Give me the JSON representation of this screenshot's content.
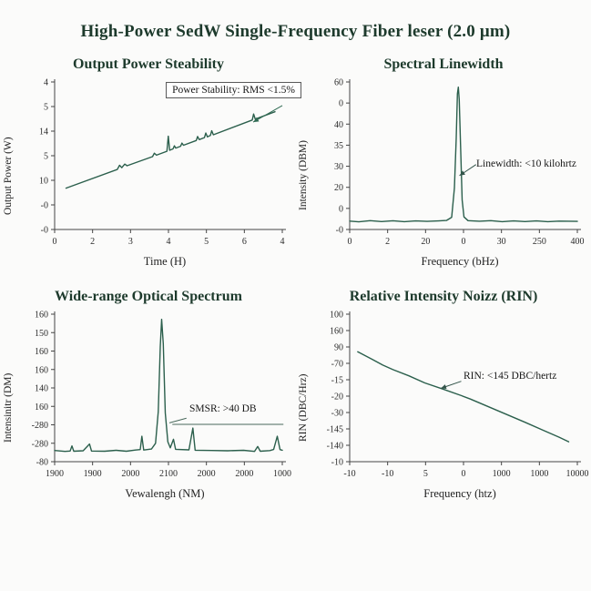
{
  "page": {
    "title": "High-Power SedW Single-Frequency Fiber leser (2.0 μm)"
  },
  "colors": {
    "background": "#fbfbfa",
    "title_text": "#1d3a2c",
    "line": "#2b5f4c",
    "axis": "#454545",
    "tick_text": "#2b2b2b",
    "annotation_text": "#161616"
  },
  "chart_data": [
    {
      "type": "line",
      "title": "Output Power Steability",
      "xlabel": "Time (H)",
      "ylabel": "Output Power (W)",
      "xticks": [
        "0",
        "2",
        "3",
        "4",
        "5",
        "6",
        "4"
      ],
      "yticks_top_to_bottom": [
        "4",
        "5",
        "14",
        "5",
        "10",
        "-0",
        "-0"
      ],
      "grid": false,
      "legend": null,
      "coords": "points_norm are fractions of plot area, origin bottom-left",
      "series": [
        {
          "name": "output-power-trace",
          "points_norm": [
            [
              0.05,
              0.28
            ],
            [
              0.275,
              0.407
            ],
            [
              0.285,
              0.435
            ],
            [
              0.295,
              0.419
            ],
            [
              0.308,
              0.443
            ],
            [
              0.318,
              0.432
            ],
            [
              0.43,
              0.494
            ],
            [
              0.438,
              0.517
            ],
            [
              0.447,
              0.504
            ],
            [
              0.493,
              0.53
            ],
            [
              0.499,
              0.632
            ],
            [
              0.505,
              0.537
            ],
            [
              0.52,
              0.546
            ],
            [
              0.526,
              0.567
            ],
            [
              0.532,
              0.552
            ],
            [
              0.553,
              0.564
            ],
            [
              0.559,
              0.586
            ],
            [
              0.566,
              0.571
            ],
            [
              0.622,
              0.603
            ],
            [
              0.628,
              0.63
            ],
            [
              0.635,
              0.609
            ],
            [
              0.658,
              0.623
            ],
            [
              0.664,
              0.654
            ],
            [
              0.671,
              0.628
            ],
            [
              0.684,
              0.637
            ],
            [
              0.69,
              0.669
            ],
            [
              0.697,
              0.642
            ],
            [
              0.868,
              0.742
            ],
            [
              0.874,
              0.783
            ],
            [
              0.881,
              0.748
            ],
            [
              0.968,
              0.798
            ]
          ]
        }
      ],
      "annotation": {
        "text": "Power Stability: RMS <1.5%",
        "boxed": true,
        "line_color": "#2f6a52",
        "arrowhead": true,
        "segments": [
          [
            1.0,
            0.84,
            0.872,
            0.728
          ]
        ]
      }
    },
    {
      "type": "line",
      "title": "Spectral Linewidth",
      "xlabel": "Frequency (bHz)",
      "ylabel": "Intensity (DBM)",
      "xticks": [
        "0",
        "2",
        "20",
        "0",
        "30",
        "250",
        "400"
      ],
      "yticks_top_to_bottom": [
        "60",
        "0",
        "40",
        "35",
        "30",
        "20",
        "0",
        "-0"
      ],
      "grid": false,
      "legend": null,
      "coords": "points_norm are fractions of plot area, origin bottom-left",
      "series": [
        {
          "name": "linewidth-peak",
          "points_norm": [
            [
              0.0,
              0.057
            ],
            [
              0.04,
              0.052
            ],
            [
              0.09,
              0.06
            ],
            [
              0.14,
              0.054
            ],
            [
              0.19,
              0.059
            ],
            [
              0.24,
              0.053
            ],
            [
              0.29,
              0.058
            ],
            [
              0.34,
              0.055
            ],
            [
              0.39,
              0.058
            ],
            [
              0.425,
              0.061
            ],
            [
              0.448,
              0.083
            ],
            [
              0.46,
              0.28
            ],
            [
              0.468,
              0.62
            ],
            [
              0.473,
              0.92
            ],
            [
              0.477,
              0.965
            ],
            [
              0.481,
              0.88
            ],
            [
              0.488,
              0.52
            ],
            [
              0.494,
              0.2
            ],
            [
              0.502,
              0.085
            ],
            [
              0.52,
              0.06
            ],
            [
              0.57,
              0.056
            ],
            [
              0.62,
              0.06
            ],
            [
              0.67,
              0.053
            ],
            [
              0.72,
              0.058
            ],
            [
              0.77,
              0.054
            ],
            [
              0.82,
              0.058
            ],
            [
              0.87,
              0.053
            ],
            [
              0.92,
              0.057
            ],
            [
              1.0,
              0.055
            ]
          ]
        }
      ],
      "annotation": {
        "text": "Linewidth: <10 kilohrtz",
        "boxed": false,
        "line_color": "#33544a",
        "arrowhead": true,
        "segments": [
          [
            0.555,
            0.44,
            0.482,
            0.365
          ]
        ]
      }
    },
    {
      "type": "line",
      "title": "Wide-range Optical Spectrum",
      "xlabel": "Vewalengh (NM)",
      "ylabel": "Intensinitr (DM)",
      "xticks": [
        "1900",
        "1900",
        "2000",
        "2100",
        "2000",
        "2000",
        "1000"
      ],
      "yticks_top_to_bottom": [
        "160",
        "150",
        "160",
        "160",
        "140",
        "160",
        "-280",
        "-280",
        "-80"
      ],
      "grid": false,
      "legend": null,
      "coords": "points_norm are fractions of plot area, origin bottom-left",
      "series": [
        {
          "name": "optical-spectrum",
          "points_norm": [
            [
              0.0,
              0.076
            ],
            [
              0.045,
              0.07
            ],
            [
              0.068,
              0.072
            ],
            [
              0.076,
              0.107
            ],
            [
              0.084,
              0.071
            ],
            [
              0.125,
              0.074
            ],
            [
              0.153,
              0.12
            ],
            [
              0.162,
              0.072
            ],
            [
              0.22,
              0.071
            ],
            [
              0.27,
              0.077
            ],
            [
              0.315,
              0.071
            ],
            [
              0.355,
              0.079
            ],
            [
              0.376,
              0.082
            ],
            [
              0.383,
              0.172
            ],
            [
              0.391,
              0.079
            ],
            [
              0.425,
              0.086
            ],
            [
              0.443,
              0.125
            ],
            [
              0.455,
              0.34
            ],
            [
              0.464,
              0.78
            ],
            [
              0.47,
              0.965
            ],
            [
              0.477,
              0.8
            ],
            [
              0.486,
              0.33
            ],
            [
              0.497,
              0.135
            ],
            [
              0.508,
              0.094
            ],
            [
              0.522,
              0.152
            ],
            [
              0.531,
              0.084
            ],
            [
              0.59,
              0.08
            ],
            [
              0.607,
              0.228
            ],
            [
              0.617,
              0.078
            ],
            [
              0.69,
              0.076
            ],
            [
              0.76,
              0.074
            ],
            [
              0.83,
              0.077
            ],
            [
              0.878,
              0.07
            ],
            [
              0.892,
              0.103
            ],
            [
              0.903,
              0.071
            ],
            [
              0.945,
              0.075
            ],
            [
              0.962,
              0.083
            ],
            [
              0.978,
              0.172
            ],
            [
              0.99,
              0.082
            ],
            [
              1.0,
              0.078
            ]
          ]
        }
      ],
      "annotation": {
        "text": "SMSR: >40 DB",
        "boxed": false,
        "line_color": "#4a6a5c",
        "arrowhead": false,
        "segments": [
          [
            0.504,
            0.263,
            0.579,
            0.295
          ],
          [
            0.517,
            0.253,
            1.005,
            0.253
          ]
        ]
      }
    },
    {
      "type": "line",
      "title": "Relative Intensity Noizz (RIN)",
      "xlabel": "Frequency (htz)",
      "ylabel": "RIN (DBC/Hrz)",
      "xticks": [
        "-10",
        "-10",
        "5",
        "0",
        "1000",
        "1000",
        "10000"
      ],
      "yticks_top_to_bottom": [
        "100",
        "160",
        "90",
        "-70",
        "-15",
        "-20",
        "-30",
        "-145",
        "-140",
        "-10"
      ],
      "grid": false,
      "legend": null,
      "coords": "points_norm are fractions of plot area, origin bottom-left",
      "series": [
        {
          "name": "rin-curve",
          "points_norm": [
            [
              0.035,
              0.745
            ],
            [
              0.1,
              0.693
            ],
            [
              0.145,
              0.655
            ],
            [
              0.19,
              0.624
            ],
            [
              0.26,
              0.582
            ],
            [
              0.33,
              0.534
            ],
            [
              0.41,
              0.492
            ],
            [
              0.49,
              0.448
            ],
            [
              0.53,
              0.425
            ],
            [
              0.61,
              0.372
            ],
            [
              0.69,
              0.32
            ],
            [
              0.77,
              0.267
            ],
            [
              0.85,
              0.213
            ],
            [
              0.92,
              0.166
            ],
            [
              0.962,
              0.135
            ]
          ]
        }
      ],
      "annotation": {
        "text": "RIN: <145 DBC/hertz",
        "boxed": false,
        "line_color": "#33544a",
        "arrowhead": true,
        "segments": [
          [
            0.49,
            0.545,
            0.4,
            0.497
          ]
        ]
      }
    }
  ]
}
